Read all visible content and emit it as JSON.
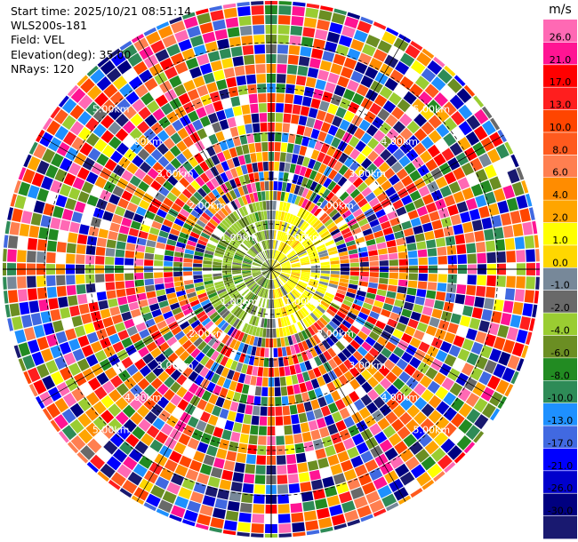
{
  "info": {
    "start_time": "Start time: 2025/10/21 08:51:14",
    "instrument": "WLS200s-181",
    "field": "Field: VEL",
    "elevation": "Elevation(deg): 35.00",
    "nrays": "NRays: 120"
  },
  "chart_data": {
    "type": "heatmap",
    "projection": "polar-ppi",
    "field": "VEL",
    "units": "m/s",
    "nrays": 120,
    "range_rings_km": [
      1,
      2,
      3,
      4,
      5
    ],
    "range_ring_labels": [
      "1.00km",
      "2.00km",
      "3.00km",
      "4.00km",
      "5.00km"
    ],
    "near_range_pattern": "negative (green) velocities to the west, positive (yellow) velocities to the east within about 1.5 km",
    "far_range_pattern": "noise (random velocities) beyond about 1.5 km",
    "colorbar": {
      "title": "m/s",
      "ticks": [
        "26.0",
        "21.0",
        "17.0",
        "13.0",
        "10.0",
        "8.0",
        "6.0",
        "4.0",
        "2.0",
        "1.0",
        "0.0",
        "-1.0",
        "-2.0",
        "-4.0",
        "-6.0",
        "-8.0",
        "-10.0",
        "-13.0",
        "-17.0",
        "-21.0",
        "-26.0",
        "-30.0"
      ],
      "colors": [
        "#ff69b4",
        "#ff1493",
        "#ff0000",
        "#ff1e1e",
        "#ff4500",
        "#ff5a1e",
        "#ff7f50",
        "#ff8c00",
        "#ffa500",
        "#ffff00",
        "#ffd700",
        "#778899",
        "#696969",
        "#9acd32",
        "#6b8e23",
        "#228b22",
        "#2e8b57",
        "#1e90ff",
        "#4169e1",
        "#0000ff",
        "#0000cd",
        "#000080",
        "#191970"
      ]
    }
  }
}
